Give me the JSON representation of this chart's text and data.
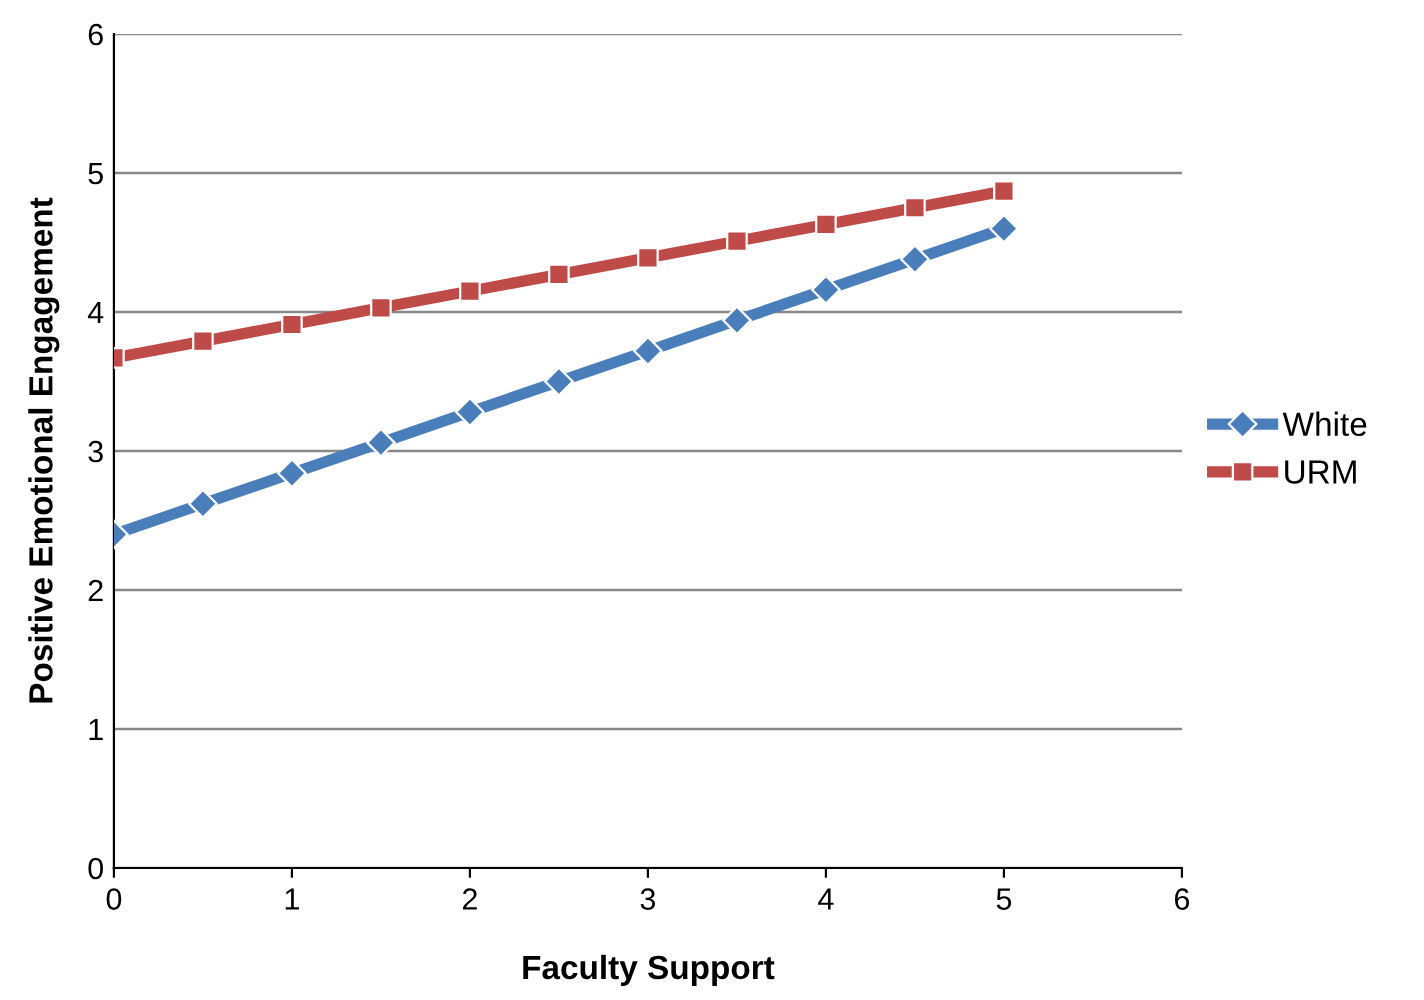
{
  "chart_data": {
    "type": "line",
    "xlabel": "Faculty Support",
    "ylabel": "Positive Emotional Engagement",
    "x": [
      0,
      0.5,
      1,
      1.5,
      2,
      2.5,
      3,
      3.5,
      4,
      4.5,
      5
    ],
    "series": [
      {
        "name": "White",
        "color": "#4a7ebb",
        "marker": "diamond",
        "values": [
          2.4,
          2.62,
          2.84,
          3.06,
          3.28,
          3.5,
          3.72,
          3.94,
          4.16,
          4.38,
          4.6
        ]
      },
      {
        "name": "URM",
        "color": "#be4b48",
        "marker": "square",
        "values": [
          3.67,
          3.79,
          3.91,
          4.03,
          4.15,
          4.27,
          4.39,
          4.51,
          4.63,
          4.75,
          4.87
        ]
      }
    ],
    "xlim": [
      0,
      6
    ],
    "xticks": [
      0,
      1,
      2,
      3,
      4,
      5,
      6
    ],
    "ylim": [
      0,
      6
    ],
    "yticks": [
      0,
      1,
      2,
      3,
      4,
      5,
      6
    ],
    "grid": "y",
    "legend": "right",
    "line_style": "solid"
  }
}
